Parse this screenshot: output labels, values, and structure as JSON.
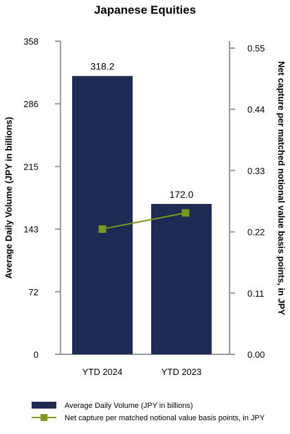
{
  "chart_data": {
    "type": "bar",
    "title": "Japanese Equities",
    "categories": [
      "YTD 2024",
      "YTD 2023"
    ],
    "series": [
      {
        "name": "Average Daily Volume (JPY in billions)",
        "type": "bar",
        "axis": "left",
        "values": [
          318.2,
          172.0
        ],
        "data_labels": [
          "318.2",
          "172.0"
        ],
        "color": "#1e2a54"
      },
      {
        "name": "Net capture per matched notional value basis points, in JPY",
        "type": "line",
        "axis": "right",
        "values": [
          0.225,
          0.254
        ],
        "color": "#7a9a1a"
      }
    ],
    "ylabel": "Average Daily Volume (JPY in billions)",
    "ylabel_right": "Net capture per matched notional value basis points, in JPY",
    "ylim": [
      0,
      358
    ],
    "ylim_right": [
      0,
      0.55
    ],
    "yticks": [
      "0",
      "72",
      "143",
      "215",
      "286",
      "358"
    ],
    "yticks_right": [
      "0.00",
      "0.11",
      "0.22",
      "0.33",
      "0.44",
      "0.55"
    ],
    "grid": false,
    "legend_position": "bottom-left"
  }
}
